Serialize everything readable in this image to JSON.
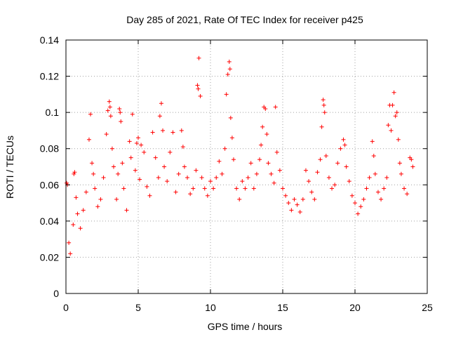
{
  "chart_data": {
    "type": "scatter",
    "title": "Day 285 of 2021, Rate Of TEC Index for receiver p425",
    "xlabel": "GPS time / hours",
    "ylabel": "ROTI / TECUs",
    "xlim": [
      0,
      25
    ],
    "ylim": [
      0,
      0.14
    ],
    "xticks": [
      0,
      5,
      10,
      15,
      20,
      25
    ],
    "yticks": [
      0,
      0.02,
      0.04,
      0.06,
      0.08,
      0.1,
      0.12,
      0.14
    ],
    "xtick_labels": [
      "0",
      "5",
      "10",
      "15",
      "20",
      "25"
    ],
    "ytick_labels": [
      "0",
      "0.02",
      "0.04",
      "0.06",
      "0.08",
      "0.1",
      "0.12",
      "0.14"
    ],
    "marker": "+",
    "grid": true,
    "colors": {
      "points": "#ff0000",
      "grid": "#a0a0a0",
      "axes": "#000000"
    },
    "series": [
      {
        "name": "ROTI",
        "points": [
          [
            0.05,
            0.061
          ],
          [
            0.1,
            0.06
          ],
          [
            0.2,
            0.028
          ],
          [
            0.3,
            0.022
          ],
          [
            0.5,
            0.038
          ],
          [
            0.55,
            0.066
          ],
          [
            0.6,
            0.067
          ],
          [
            0.7,
            0.053
          ],
          [
            0.8,
            0.044
          ],
          [
            1.0,
            0.036
          ],
          [
            1.2,
            0.046
          ],
          [
            1.4,
            0.056
          ],
          [
            1.6,
            0.085
          ],
          [
            1.7,
            0.099
          ],
          [
            1.8,
            0.072
          ],
          [
            1.9,
            0.066
          ],
          [
            2.0,
            0.058
          ],
          [
            2.2,
            0.048
          ],
          [
            2.4,
            0.052
          ],
          [
            2.6,
            0.064
          ],
          [
            2.8,
            0.088
          ],
          [
            2.9,
            0.101
          ],
          [
            3.0,
            0.106
          ],
          [
            3.05,
            0.103
          ],
          [
            3.1,
            0.098
          ],
          [
            3.2,
            0.08
          ],
          [
            3.3,
            0.07
          ],
          [
            3.5,
            0.052
          ],
          [
            3.6,
            0.066
          ],
          [
            3.7,
            0.102
          ],
          [
            3.75,
            0.1
          ],
          [
            3.8,
            0.095
          ],
          [
            3.9,
            0.072
          ],
          [
            4.0,
            0.058
          ],
          [
            4.2,
            0.046
          ],
          [
            4.4,
            0.084
          ],
          [
            4.5,
            0.075
          ],
          [
            4.6,
            0.099
          ],
          [
            4.8,
            0.068
          ],
          [
            4.9,
            0.083
          ],
          [
            5.0,
            0.086
          ],
          [
            5.1,
            0.063
          ],
          [
            5.2,
            0.082
          ],
          [
            5.4,
            0.078
          ],
          [
            5.6,
            0.059
          ],
          [
            5.8,
            0.054
          ],
          [
            6.0,
            0.089
          ],
          [
            6.2,
            0.075
          ],
          [
            6.4,
            0.064
          ],
          [
            6.5,
            0.098
          ],
          [
            6.6,
            0.105
          ],
          [
            6.7,
            0.09
          ],
          [
            6.8,
            0.07
          ],
          [
            7.0,
            0.062
          ],
          [
            7.2,
            0.078
          ],
          [
            7.4,
            0.089
          ],
          [
            7.6,
            0.056
          ],
          [
            7.8,
            0.066
          ],
          [
            8.0,
            0.09
          ],
          [
            8.1,
            0.081
          ],
          [
            8.2,
            0.07
          ],
          [
            8.4,
            0.064
          ],
          [
            8.6,
            0.055
          ],
          [
            8.8,
            0.058
          ],
          [
            9.0,
            0.068
          ],
          [
            9.1,
            0.115
          ],
          [
            9.15,
            0.113
          ],
          [
            9.2,
            0.13
          ],
          [
            9.3,
            0.109
          ],
          [
            9.4,
            0.064
          ],
          [
            9.6,
            0.058
          ],
          [
            9.8,
            0.054
          ],
          [
            10.0,
            0.062
          ],
          [
            10.2,
            0.058
          ],
          [
            10.4,
            0.064
          ],
          [
            10.6,
            0.073
          ],
          [
            10.8,
            0.066
          ],
          [
            11.0,
            0.08
          ],
          [
            11.1,
            0.11
          ],
          [
            11.2,
            0.121
          ],
          [
            11.3,
            0.128
          ],
          [
            11.35,
            0.124
          ],
          [
            11.4,
            0.097
          ],
          [
            11.5,
            0.086
          ],
          [
            11.6,
            0.074
          ],
          [
            11.8,
            0.058
          ],
          [
            12.0,
            0.052
          ],
          [
            12.2,
            0.062
          ],
          [
            12.4,
            0.058
          ],
          [
            12.6,
            0.064
          ],
          [
            12.8,
            0.072
          ],
          [
            13.0,
            0.058
          ],
          [
            13.2,
            0.066
          ],
          [
            13.4,
            0.074
          ],
          [
            13.5,
            0.082
          ],
          [
            13.6,
            0.092
          ],
          [
            13.7,
            0.103
          ],
          [
            13.8,
            0.102
          ],
          [
            13.9,
            0.088
          ],
          [
            14.0,
            0.072
          ],
          [
            14.2,
            0.066
          ],
          [
            14.4,
            0.061
          ],
          [
            14.5,
            0.103
          ],
          [
            14.6,
            0.078
          ],
          [
            14.8,
            0.068
          ],
          [
            15.0,
            0.058
          ],
          [
            15.2,
            0.054
          ],
          [
            15.4,
            0.05
          ],
          [
            15.6,
            0.046
          ],
          [
            15.8,
            0.052
          ],
          [
            16.0,
            0.049
          ],
          [
            16.2,
            0.045
          ],
          [
            16.4,
            0.052
          ],
          [
            16.6,
            0.068
          ],
          [
            16.8,
            0.062
          ],
          [
            17.0,
            0.056
          ],
          [
            17.2,
            0.052
          ],
          [
            17.4,
            0.067
          ],
          [
            17.6,
            0.074
          ],
          [
            17.7,
            0.092
          ],
          [
            17.8,
            0.107
          ],
          [
            17.85,
            0.104
          ],
          [
            17.9,
            0.1
          ],
          [
            18.0,
            0.076
          ],
          [
            18.2,
            0.064
          ],
          [
            18.4,
            0.058
          ],
          [
            18.6,
            0.06
          ],
          [
            18.8,
            0.072
          ],
          [
            19.0,
            0.08
          ],
          [
            19.2,
            0.085
          ],
          [
            19.3,
            0.082
          ],
          [
            19.4,
            0.07
          ],
          [
            19.6,
            0.062
          ],
          [
            19.8,
            0.054
          ],
          [
            20.0,
            0.05
          ],
          [
            20.2,
            0.044
          ],
          [
            20.4,
            0.048
          ],
          [
            20.6,
            0.052
          ],
          [
            20.8,
            0.058
          ],
          [
            21.0,
            0.064
          ],
          [
            21.2,
            0.084
          ],
          [
            21.3,
            0.076
          ],
          [
            21.4,
            0.066
          ],
          [
            21.6,
            0.056
          ],
          [
            21.8,
            0.052
          ],
          [
            22.0,
            0.058
          ],
          [
            22.2,
            0.064
          ],
          [
            22.3,
            0.093
          ],
          [
            22.4,
            0.104
          ],
          [
            22.5,
            0.09
          ],
          [
            22.6,
            0.104
          ],
          [
            22.7,
            0.111
          ],
          [
            22.8,
            0.098
          ],
          [
            22.9,
            0.1
          ],
          [
            23.0,
            0.085
          ],
          [
            23.1,
            0.072
          ],
          [
            23.2,
            0.066
          ],
          [
            23.4,
            0.058
          ],
          [
            23.6,
            0.055
          ],
          [
            23.8,
            0.075
          ],
          [
            23.9,
            0.074
          ],
          [
            24.0,
            0.07
          ]
        ]
      }
    ]
  }
}
